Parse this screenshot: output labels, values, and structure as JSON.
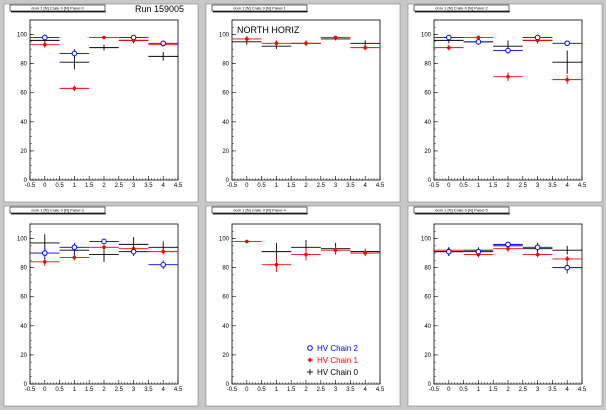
{
  "page": {
    "background": "#c8c8c8",
    "pad_color": "#ffffff"
  },
  "colors": {
    "HV Chain 2": "#0000ff",
    "HV Chain 1": "#ff0000",
    "HV Chain 0": "#000000"
  },
  "legend": {
    "panel_index": 4,
    "entries": [
      {
        "label": "HV Chain 2",
        "marker": "circle",
        "color": "#0000ff"
      },
      {
        "label": "HV Chain 1",
        "marker": "star",
        "color": "#ff0000"
      },
      {
        "label": "HV Chain 0",
        "marker": "cross",
        "color": "#000000"
      }
    ]
  },
  "chart_data": [
    {
      "type": "scatter",
      "title": "dom 1 [N] Crate 0 [N] Panel 0",
      "annotation": "Run 159005",
      "xlim": [
        -0.5,
        4.5
      ],
      "ylim": [
        0,
        110
      ],
      "xticks": [
        "-0.5",
        "0",
        "0.5",
        "1",
        "1.5",
        "2",
        "2.5",
        "3",
        "3.5",
        "4",
        "4.5"
      ],
      "yticks": [
        "0",
        "20",
        "40",
        "60",
        "80",
        "100"
      ],
      "grid": false,
      "series": [
        {
          "name": "HV Chain 2",
          "x": [
            0,
            1,
            3,
            4
          ],
          "y": [
            98,
            87,
            98,
            94
          ],
          "yerr": [
            2,
            3,
            1,
            1
          ]
        },
        {
          "name": "HV Chain 1",
          "x": [
            0,
            1,
            2,
            3,
            4
          ],
          "y": [
            93,
            63,
            98,
            96,
            93
          ],
          "yerr": [
            2,
            2,
            1,
            1,
            1
          ]
        },
        {
          "name": "HV Chain 0",
          "x": [
            0,
            1,
            2,
            3,
            4
          ],
          "y": [
            96,
            81,
            91,
            96,
            85
          ],
          "yerr": [
            2,
            5,
            2,
            2,
            3
          ]
        }
      ]
    },
    {
      "type": "scatter",
      "title": "dom 1 [N] Crate 0 [N] Panel 1",
      "annotation": "NORTH HORIZ",
      "xlim": [
        -0.5,
        4.5
      ],
      "ylim": [
        0,
        110
      ],
      "xticks": [
        "-0.5",
        "0",
        "0.5",
        "1",
        "1.5",
        "2",
        "2.5",
        "3",
        "3.5",
        "4",
        "4.5"
      ],
      "yticks": [
        "0",
        "20",
        "40",
        "60",
        "80",
        "100"
      ],
      "grid": false,
      "series": [
        {
          "name": "HV Chain 2",
          "x": [],
          "y": [],
          "yerr": []
        },
        {
          "name": "HV Chain 1",
          "x": [
            0,
            1,
            2,
            3,
            4
          ],
          "y": [
            97,
            94,
            94,
            98,
            91
          ],
          "yerr": [
            2,
            2,
            2,
            1,
            2
          ]
        },
        {
          "name": "HV Chain 0",
          "x": [
            0,
            1,
            2,
            3,
            4
          ],
          "y": [
            95,
            92,
            94,
            97,
            94
          ],
          "yerr": [
            2,
            2,
            2,
            1,
            2
          ]
        }
      ]
    },
    {
      "type": "scatter",
      "title": "dom 1 [N] Crate 0 [N] Panel 2",
      "annotation": "",
      "xlim": [
        -0.5,
        4.5
      ],
      "ylim": [
        0,
        110
      ],
      "xticks": [
        "-0.5",
        "0",
        "0.5",
        "1",
        "1.5",
        "2",
        "2.5",
        "3",
        "3.5",
        "4",
        "4.5"
      ],
      "yticks": [
        "0",
        "20",
        "40",
        "60",
        "80",
        "100"
      ],
      "grid": false,
      "series": [
        {
          "name": "HV Chain 2",
          "x": [
            0,
            1,
            2,
            3,
            4
          ],
          "y": [
            98,
            95,
            89,
            98,
            94
          ],
          "yerr": [
            1,
            2,
            2,
            1,
            1
          ]
        },
        {
          "name": "HV Chain 1",
          "x": [
            0,
            1,
            2,
            3,
            4
          ],
          "y": [
            91,
            98,
            71,
            96,
            69
          ],
          "yerr": [
            2,
            1,
            3,
            1,
            3
          ]
        },
        {
          "name": "HV Chain 0",
          "x": [
            0,
            1,
            2,
            3,
            4
          ],
          "y": [
            96,
            95,
            92,
            96,
            81
          ],
          "yerr": [
            2,
            2,
            4,
            2,
            8
          ]
        }
      ]
    },
    {
      "type": "scatter",
      "title": "dom 1 [N] Crate 0 [N] Panel 3",
      "annotation": "",
      "xlim": [
        -0.5,
        4.5
      ],
      "ylim": [
        0,
        110
      ],
      "xticks": [
        "-0.5",
        "0",
        "0.5",
        "1",
        "1.5",
        "2",
        "2.5",
        "3",
        "3.5",
        "4",
        "4.5"
      ],
      "yticks": [
        "0",
        "20",
        "40",
        "60",
        "80",
        "100"
      ],
      "grid": false,
      "series": [
        {
          "name": "HV Chain 2",
          "x": [
            0,
            1,
            2,
            3,
            4
          ],
          "y": [
            90,
            94,
            98,
            91,
            82
          ],
          "yerr": [
            4,
            3,
            2,
            3,
            3
          ]
        },
        {
          "name": "HV Chain 1",
          "x": [
            0,
            1,
            2,
            3,
            4
          ],
          "y": [
            84,
            87,
            94,
            93,
            91
          ],
          "yerr": [
            3,
            2,
            2,
            2,
            2
          ]
        },
        {
          "name": "HV Chain 0",
          "x": [
            0,
            1,
            2,
            3,
            4
          ],
          "y": [
            97,
            92,
            89,
            96,
            94
          ],
          "yerr": [
            6,
            4,
            5,
            5,
            4
          ]
        }
      ]
    },
    {
      "type": "scatter",
      "title": "dom 1 [N] Crate 0 [N] Panel 4",
      "annotation": "",
      "xlim": [
        -0.5,
        4.5
      ],
      "ylim": [
        0,
        110
      ],
      "xticks": [
        "-0.5",
        "0",
        "0.5",
        "1",
        "1.5",
        "2",
        "2.5",
        "3",
        "3.5",
        "4",
        "4.5"
      ],
      "yticks": [
        "0",
        "20",
        "40",
        "60",
        "80",
        "100"
      ],
      "grid": false,
      "series": [
        {
          "name": "HV Chain 2",
          "x": [],
          "y": [],
          "yerr": []
        },
        {
          "name": "HV Chain 1",
          "x": [
            0,
            1,
            2,
            3,
            4
          ],
          "y": [
            98,
            82,
            89,
            92,
            90
          ],
          "yerr": [
            1,
            5,
            4,
            3,
            2
          ]
        },
        {
          "name": "HV Chain 0",
          "x": [
            1,
            2,
            3,
            4
          ],
          "y": [
            91,
            94,
            93,
            91
          ],
          "yerr": [
            6,
            5,
            4,
            2
          ]
        }
      ]
    },
    {
      "type": "scatter",
      "title": "dom 1 [N] Crate 0 [N] Panel 5",
      "annotation": "",
      "xlim": [
        -0.5,
        4.5
      ],
      "ylim": [
        0,
        110
      ],
      "xticks": [
        "-0.5",
        "0",
        "0.5",
        "1",
        "1.5",
        "2",
        "2.5",
        "3",
        "3.5",
        "4",
        "4.5"
      ],
      "yticks": [
        "0",
        "20",
        "40",
        "60",
        "80",
        "100"
      ],
      "grid": false,
      "series": [
        {
          "name": "HV Chain 2",
          "x": [
            0,
            1,
            2,
            3,
            4
          ],
          "y": [
            91,
            91,
            96,
            94,
            80
          ],
          "yerr": [
            3,
            2,
            2,
            3,
            4
          ]
        },
        {
          "name": "HV Chain 1",
          "x": [
            0,
            1,
            2,
            3,
            4
          ],
          "y": [
            92,
            89,
            93,
            89,
            86
          ],
          "yerr": [
            2,
            2,
            2,
            2,
            2
          ]
        },
        {
          "name": "HV Chain 0",
          "x": [
            0,
            1,
            2,
            3,
            4
          ],
          "y": [
            91,
            92,
            95,
            93,
            92
          ],
          "yerr": [
            3,
            2,
            2,
            4,
            3
          ]
        }
      ]
    }
  ]
}
